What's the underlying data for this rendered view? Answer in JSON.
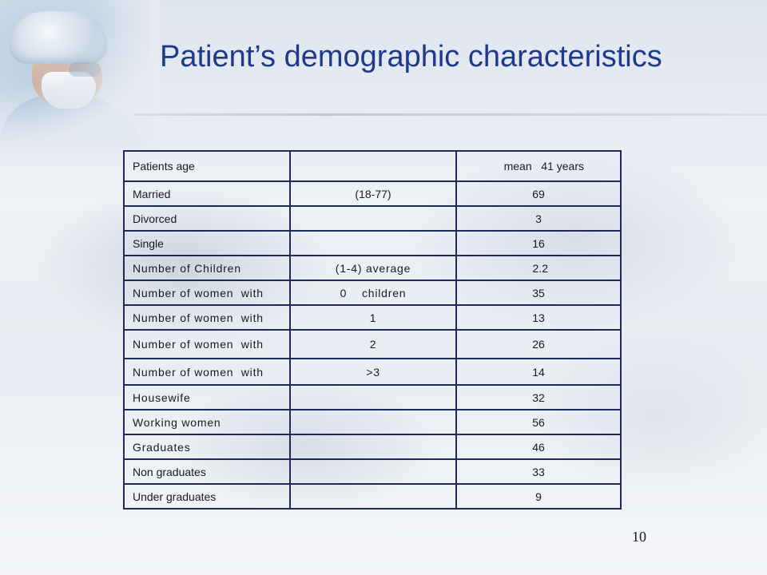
{
  "slide": {
    "title": "Patient’s demographic characteristics",
    "page_number": "10"
  },
  "table": {
    "rows": [
      {
        "label": "Patients age",
        "range": "",
        "value": "mean   41 years"
      },
      {
        "label": "Married",
        "range": "(18-77)",
        "value": "69"
      },
      {
        "label": "Divorced",
        "range": "",
        "value": "3"
      },
      {
        "label": "Single",
        "range": "",
        "value": "16"
      },
      {
        "label": "Number of Children",
        "range": "(1-4) average",
        "value": "2.2"
      },
      {
        "label": "Number of women  with",
        "range": "0    children",
        "value": "35"
      },
      {
        "label": "Number of women  with",
        "range": "1",
        "value": "13"
      },
      {
        "label": "Number of women  with",
        "range": "2",
        "value": "26"
      },
      {
        "label": "Number of women  with",
        "range": ">3",
        "value": "14"
      },
      {
        "label": "Housewife",
        "range": "",
        "value": "32"
      },
      {
        "label": "Working women",
        "range": "",
        "value": "56"
      },
      {
        "label": "Graduates",
        "range": "",
        "value": "46"
      },
      {
        "label": "Non graduates",
        "range": "",
        "value": "33"
      },
      {
        "label": "Under graduates",
        "range": "",
        "value": "9"
      }
    ]
  }
}
